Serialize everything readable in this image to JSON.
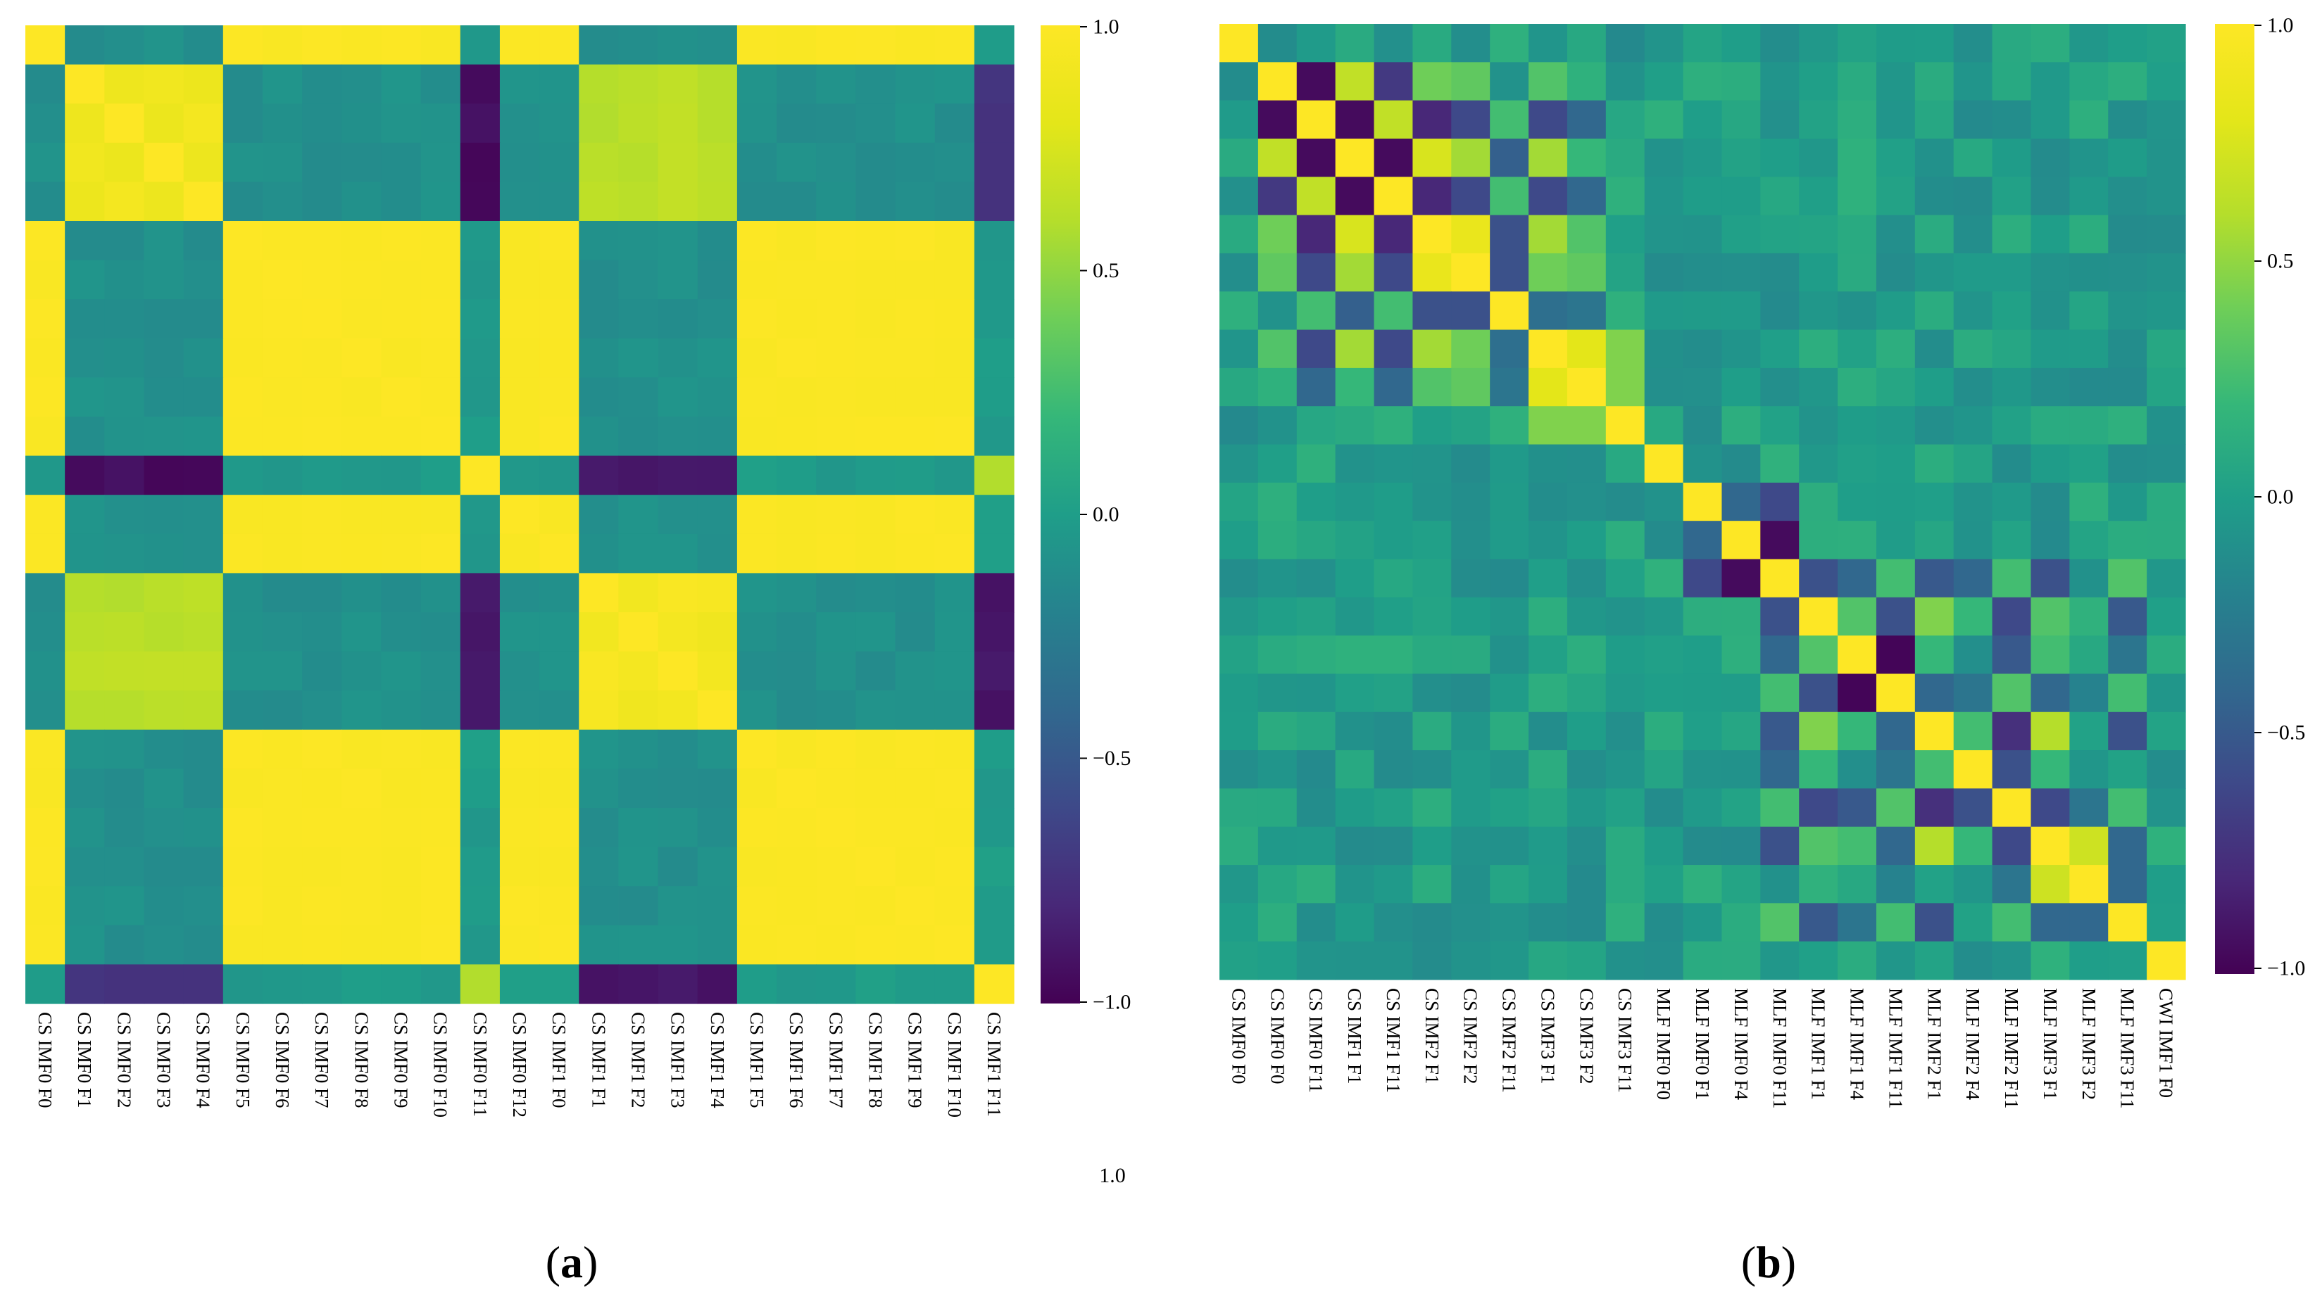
{
  "panels": [
    {
      "label": "a",
      "labels": [
        "CS IMF0 F0",
        "CS IMF0 F1",
        "CS IMF0 F2",
        "CS IMF0 F3",
        "CS IMF0 F4",
        "CS IMF0 F5",
        "CS IMF0 F6",
        "CS IMF0 F7",
        "CS IMF0 F8",
        "CS IMF0 F9",
        "CS IMF0 F10",
        "CS IMF0 F11",
        "CS IMF0 F12",
        "CS IMF1 F0",
        "CS IMF1 F1",
        "CS IMF1 F2",
        "CS IMF1 F3",
        "CS IMF1 F4",
        "CS IMF1 F5",
        "CS IMF1 F6",
        "CS IMF1 F7",
        "CS IMF1 F8",
        "CS IMF1 F9",
        "CS IMF1 F10",
        "CS IMF1 F11"
      ],
      "colorbar_ticks": [
        "1.0",
        "0.5",
        "0.0",
        "−0.5",
        "−1.0"
      ],
      "stray_text": "1.0"
    },
    {
      "label": "b",
      "labels": [
        "CS IMF0 F0",
        "CS IMF0 F0",
        "CS IMF0 F11",
        "CS IMF1 F1",
        "CS IMF1 F11",
        "CS IMF2 F1",
        "CS IMF2 F2",
        "CS IMF2 F11",
        "CS IMF3 F1",
        "CS IMF3 F2",
        "CS IMF3 F11",
        "MLF IMF0 F0",
        "MLF IMF0 F1",
        "MLF IMF0 F4",
        "MLF IMF0 F11",
        "MLF IMF1 F1",
        "MLF IMF1 F4",
        "MLF IMF1 F11",
        "MLF IMF2 F1",
        "MLF IMF2 F4",
        "MLF IMF2 F11",
        "MLF IMF3 F1",
        "MLF IMF3 F2",
        "MLF IMF3 F11",
        "CWI IMF1 F0"
      ],
      "colorbar_ticks": [
        "1.0",
        "0.5",
        "0.0",
        "−0.5",
        "−1.0"
      ]
    }
  ],
  "chart_data": [
    {
      "type": "heatmap",
      "title": "(a)",
      "colormap": "viridis",
      "vmin": -1.0,
      "vmax": 1.0,
      "x_labels": [
        "CS IMF0 F0",
        "CS IMF0 F1",
        "CS IMF0 F2",
        "CS IMF0 F3",
        "CS IMF0 F4",
        "CS IMF0 F5",
        "CS IMF0 F6",
        "CS IMF0 F7",
        "CS IMF0 F8",
        "CS IMF0 F9",
        "CS IMF0 F10",
        "CS IMF0 F11",
        "CS IMF0 F12",
        "CS IMF1 F0",
        "CS IMF1 F1",
        "CS IMF1 F2",
        "CS IMF1 F3",
        "CS IMF1 F4",
        "CS IMF1 F5",
        "CS IMF1 F6",
        "CS IMF1 F7",
        "CS IMF1 F8",
        "CS IMF1 F9",
        "CS IMF1 F10",
        "CS IMF1 F11"
      ],
      "group_A": [
        0,
        5,
        6,
        7,
        8,
        9,
        10,
        12,
        13,
        18,
        19,
        20,
        21,
        22,
        23
      ],
      "group_B": [
        1,
        2,
        3,
        4
      ],
      "group_C": [
        14,
        15,
        16,
        17
      ],
      "singleton_11": 11,
      "singleton_24": 24,
      "values_desc": "Block-structured correlation matrix; values estimated from colour",
      "corr_A_A": 0.98,
      "corr_B_B": 0.9,
      "corr_C_C": 0.93,
      "corr_B_C": 0.62,
      "corr_A_B": -0.1,
      "corr_A_C": -0.1,
      "corr_11_A": -0.02,
      "corr_11_B": -0.95,
      "corr_11_C": -0.88,
      "corr_24_A": -0.02,
      "corr_24_B": -0.72,
      "corr_24_C": -0.9,
      "corr_11_24": 0.62
    },
    {
      "type": "heatmap",
      "title": "(b)",
      "colormap": "viridis",
      "vmin": -1.0,
      "vmax": 1.0,
      "x_labels": [
        "CS IMF0 F0",
        "CS IMF0 F0",
        "CS IMF0 F11",
        "CS IMF1 F1",
        "CS IMF1 F11",
        "CS IMF2 F1",
        "CS IMF2 F2",
        "CS IMF2 F11",
        "CS IMF3 F1",
        "CS IMF3 F2",
        "CS IMF3 F11",
        "MLF IMF0 F0",
        "MLF IMF0 F1",
        "MLF IMF0 F4",
        "MLF IMF0 F11",
        "MLF IMF1 F1",
        "MLF IMF1 F4",
        "MLF IMF1 F11",
        "MLF IMF2 F1",
        "MLF IMF2 F4",
        "MLF IMF2 F11",
        "MLF IMF3 F1",
        "MLF IMF3 F2",
        "MLF IMF3 F11",
        "CWI IMF1 F0"
      ],
      "values_desc": "Mostly near-zero off-diagonal; strong local structure near diagonal; values estimated",
      "strong_pairs": [
        [
          1,
          2,
          -0.95
        ],
        [
          1,
          3,
          0.65
        ],
        [
          1,
          4,
          -0.7
        ],
        [
          1,
          5,
          0.4
        ],
        [
          1,
          6,
          0.35
        ],
        [
          1,
          8,
          0.3
        ],
        [
          2,
          3,
          -0.95
        ],
        [
          2,
          4,
          0.65
        ],
        [
          2,
          5,
          -0.8
        ],
        [
          2,
          6,
          -0.6
        ],
        [
          2,
          7,
          0.25
        ],
        [
          2,
          8,
          -0.6
        ],
        [
          2,
          9,
          -0.4
        ],
        [
          3,
          4,
          -0.95
        ],
        [
          3,
          5,
          0.75
        ],
        [
          3,
          6,
          0.55
        ],
        [
          3,
          7,
          -0.45
        ],
        [
          3,
          8,
          0.55
        ],
        [
          3,
          9,
          0.2
        ],
        [
          4,
          5,
          -0.8
        ],
        [
          4,
          6,
          -0.6
        ],
        [
          4,
          7,
          0.25
        ],
        [
          4,
          8,
          -0.6
        ],
        [
          4,
          9,
          -0.4
        ],
        [
          5,
          6,
          0.85
        ],
        [
          5,
          7,
          -0.55
        ],
        [
          5,
          8,
          0.55
        ],
        [
          5,
          9,
          0.3
        ],
        [
          6,
          7,
          -0.55
        ],
        [
          6,
          8,
          0.4
        ],
        [
          6,
          9,
          0.35
        ],
        [
          7,
          8,
          -0.35
        ],
        [
          7,
          9,
          -0.3
        ],
        [
          8,
          9,
          0.8
        ],
        [
          8,
          10,
          0.45
        ],
        [
          9,
          10,
          0.45
        ],
        [
          11,
          14,
          0.15
        ],
        [
          12,
          13,
          -0.4
        ],
        [
          12,
          14,
          -0.6
        ],
        [
          13,
          14,
          -0.95
        ],
        [
          14,
          15,
          -0.55
        ],
        [
          14,
          16,
          -0.4
        ],
        [
          14,
          17,
          0.25
        ],
        [
          14,
          18,
          -0.5
        ],
        [
          14,
          19,
          -0.4
        ],
        [
          14,
          20,
          0.25
        ],
        [
          14,
          21,
          -0.55
        ],
        [
          14,
          23,
          0.3
        ],
        [
          15,
          16,
          0.3
        ],
        [
          15,
          17,
          -0.55
        ],
        [
          15,
          18,
          0.45
        ],
        [
          15,
          19,
          0.2
        ],
        [
          15,
          20,
          -0.6
        ],
        [
          15,
          21,
          0.3
        ],
        [
          15,
          22,
          0.15
        ],
        [
          15,
          23,
          -0.5
        ],
        [
          16,
          17,
          -0.98
        ],
        [
          16,
          18,
          0.2
        ],
        [
          16,
          20,
          -0.5
        ],
        [
          16,
          21,
          0.25
        ],
        [
          16,
          23,
          -0.3
        ],
        [
          17,
          18,
          -0.4
        ],
        [
          17,
          19,
          -0.3
        ],
        [
          17,
          20,
          0.3
        ],
        [
          17,
          21,
          -0.4
        ],
        [
          17,
          22,
          -0.2
        ],
        [
          17,
          23,
          0.25
        ],
        [
          18,
          19,
          0.25
        ],
        [
          18,
          20,
          -0.75
        ],
        [
          18,
          21,
          0.6
        ],
        [
          18,
          23,
          -0.55
        ],
        [
          19,
          20,
          -0.55
        ],
        [
          19,
          21,
          0.2
        ],
        [
          20,
          21,
          -0.6
        ],
        [
          20,
          22,
          -0.3
        ],
        [
          20,
          23,
          0.25
        ],
        [
          21,
          22,
          0.7
        ],
        [
          21,
          23,
          -0.4
        ],
        [
          22,
          23,
          -0.4
        ]
      ]
    }
  ]
}
